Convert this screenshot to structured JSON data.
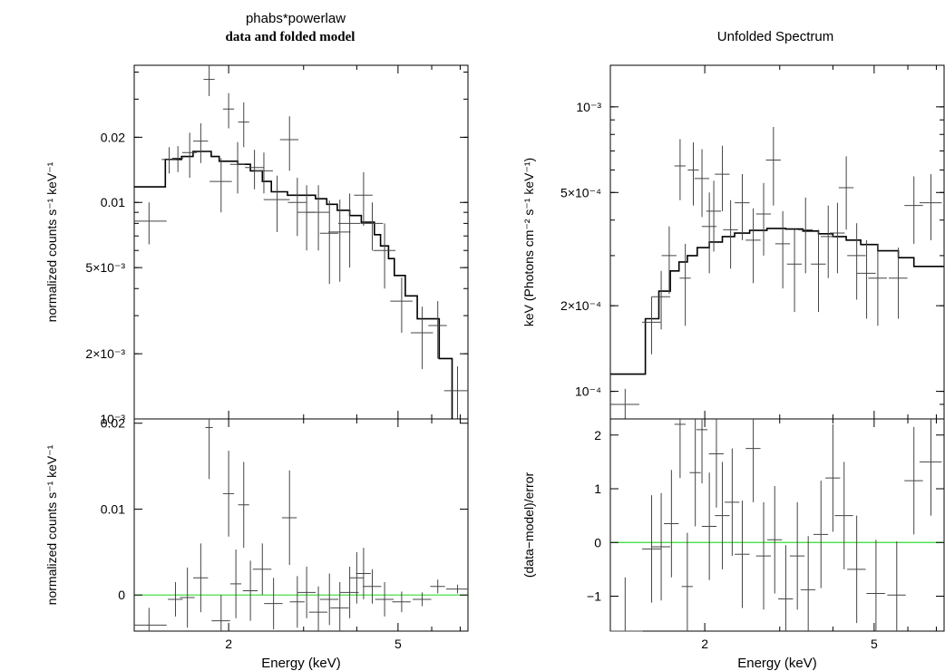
{
  "figure": {
    "left_title": "phabs*powerlaw",
    "left_subtitle": "data and folded model",
    "right_title": "Unfolded Spectrum"
  },
  "chart_data": [
    {
      "id": "left_top",
      "type": "scatter",
      "ylabel": "normalized counts s⁻¹ keV⁻¹",
      "xlabel": "",
      "xscale": "log",
      "yscale": "log",
      "xlim": [
        1.2,
        7.3
      ],
      "ylim": [
        0.001,
        0.043
      ],
      "yticks": [
        {
          "v": 0.02,
          "label": "0.02"
        },
        {
          "v": 0.01,
          "label": "0.01"
        },
        {
          "v": 0.005,
          "label": "5×10⁻³"
        },
        {
          "v": 0.002,
          "label": "2×10⁻³"
        },
        {
          "v": 0.001,
          "label": "10⁻³"
        }
      ],
      "data": [
        [
          1.3,
          0.0082,
          0.1,
          0.0018
        ],
        [
          1.45,
          0.0158,
          0.04,
          0.0022
        ],
        [
          1.52,
          0.016,
          0.03,
          0.0022
        ],
        [
          1.62,
          0.017,
          0.04,
          0.004
        ],
        [
          1.72,
          0.0192,
          0.04,
          0.004
        ],
        [
          1.8,
          0.037,
          0.03,
          0.006
        ],
        [
          1.92,
          0.0125,
          0.06,
          0.0035
        ],
        [
          2.0,
          0.027,
          0.03,
          0.005
        ],
        [
          2.1,
          0.015,
          0.04,
          0.004
        ],
        [
          2.17,
          0.0235,
          0.03,
          0.0055
        ],
        [
          2.3,
          0.0145,
          0.05,
          0.003
        ],
        [
          2.42,
          0.014,
          0.05,
          0.003
        ],
        [
          2.6,
          0.0103,
          0.07,
          0.003
        ],
        [
          2.78,
          0.0195,
          0.05,
          0.0055
        ],
        [
          2.9,
          0.01,
          0.05,
          0.003
        ],
        [
          3.05,
          0.009,
          0.05,
          0.003
        ],
        [
          3.25,
          0.009,
          0.06,
          0.003
        ],
        [
          3.45,
          0.0072,
          0.05,
          0.003
        ],
        [
          3.65,
          0.0073,
          0.06,
          0.003
        ],
        [
          3.85,
          0.008,
          0.06,
          0.003
        ],
        [
          4.15,
          0.0108,
          0.05,
          0.003
        ],
        [
          4.35,
          0.008,
          0.06,
          0.002
        ],
        [
          4.65,
          0.006,
          0.06,
          0.002
        ],
        [
          5.1,
          0.0035,
          0.06,
          0.001
        ],
        [
          5.7,
          0.0025,
          0.06,
          0.0008
        ],
        [
          6.2,
          0.0027,
          0.05,
          0.0008
        ],
        [
          6.9,
          0.00135,
          0.07,
          0.0004
        ]
      ],
      "model": [
        [
          1.2,
          0.0118
        ],
        [
          1.42,
          0.0118
        ],
        [
          1.42,
          0.0158
        ],
        [
          1.55,
          0.0158
        ],
        [
          1.55,
          0.0163
        ],
        [
          1.65,
          0.0163
        ],
        [
          1.65,
          0.0172
        ],
        [
          1.82,
          0.0172
        ],
        [
          1.82,
          0.0163
        ],
        [
          1.9,
          0.0163
        ],
        [
          1.9,
          0.0155
        ],
        [
          2.1,
          0.0155
        ],
        [
          2.1,
          0.015
        ],
        [
          2.25,
          0.015
        ],
        [
          2.25,
          0.014
        ],
        [
          2.4,
          0.014
        ],
        [
          2.4,
          0.0125
        ],
        [
          2.52,
          0.0125
        ],
        [
          2.52,
          0.0112
        ],
        [
          2.75,
          0.0112
        ],
        [
          2.75,
          0.0108
        ],
        [
          3.2,
          0.0108
        ],
        [
          3.2,
          0.0104
        ],
        [
          3.4,
          0.0104
        ],
        [
          3.4,
          0.0098
        ],
        [
          3.6,
          0.0098
        ],
        [
          3.6,
          0.0092
        ],
        [
          3.85,
          0.0092
        ],
        [
          3.85,
          0.0087
        ],
        [
          4.1,
          0.0087
        ],
        [
          4.1,
          0.0081
        ],
        [
          4.4,
          0.0081
        ],
        [
          4.4,
          0.0071
        ],
        [
          4.55,
          0.0071
        ],
        [
          4.55,
          0.0063
        ],
        [
          4.75,
          0.0063
        ],
        [
          4.75,
          0.0055
        ],
        [
          4.9,
          0.0055
        ],
        [
          4.9,
          0.0046
        ],
        [
          5.2,
          0.0046
        ],
        [
          5.2,
          0.0037
        ],
        [
          5.55,
          0.0037
        ],
        [
          5.55,
          0.0029
        ],
        [
          6.25,
          0.0029
        ],
        [
          6.25,
          0.0019
        ],
        [
          6.7,
          0.0019
        ],
        [
          6.7,
          0.001
        ]
      ]
    },
    {
      "id": "left_bottom",
      "type": "scatter",
      "ylabel": "normalized counts s⁻¹ keV⁻¹",
      "xlabel": "Energy (keV)",
      "xscale": "log",
      "yscale": "linear",
      "xlim": [
        1.2,
        7.3
      ],
      "ylim": [
        -0.0042,
        0.0205
      ],
      "zero_line_color": "#33dd33",
      "yticks": [
        {
          "v": 0.02,
          "label": "0.02"
        },
        {
          "v": 0.01,
          "label": "0.01"
        },
        {
          "v": 0,
          "label": "0"
        }
      ],
      "xticks": [
        {
          "v": 2,
          "label": "2"
        },
        {
          "v": 5,
          "label": "5"
        }
      ],
      "data": [
        [
          1.3,
          -0.0035,
          0.1,
          0.002
        ],
        [
          1.5,
          -0.0005,
          0.04,
          0.002
        ],
        [
          1.6,
          -0.0003,
          0.04,
          0.0035
        ],
        [
          1.72,
          0.002,
          0.04,
          0.004
        ],
        [
          1.8,
          0.0195,
          0.02,
          0.006
        ],
        [
          1.85,
          0.022,
          0.02,
          0.006
        ],
        [
          1.92,
          -0.003,
          0.05,
          0.003
        ],
        [
          2.0,
          0.0118,
          0.03,
          0.005
        ],
        [
          2.08,
          0.0013,
          0.03,
          0.004
        ],
        [
          2.17,
          0.0105,
          0.03,
          0.005
        ],
        [
          2.25,
          0.0005,
          0.04,
          0.0035
        ],
        [
          2.4,
          0.003,
          0.05,
          0.003
        ],
        [
          2.55,
          -0.001,
          0.05,
          0.003
        ],
        [
          2.78,
          0.009,
          0.04,
          0.0055
        ],
        [
          2.9,
          -0.0008,
          0.04,
          0.003
        ],
        [
          3.05,
          0.0003,
          0.05,
          0.003
        ],
        [
          3.25,
          -0.002,
          0.05,
          0.003
        ],
        [
          3.45,
          -0.0005,
          0.05,
          0.003
        ],
        [
          3.65,
          -0.0015,
          0.05,
          0.003
        ],
        [
          3.85,
          0.0003,
          0.05,
          0.003
        ],
        [
          4.0,
          0.002,
          0.04,
          0.003
        ],
        [
          4.15,
          0.0025,
          0.04,
          0.003
        ],
        [
          4.35,
          0.001,
          0.05,
          0.002
        ],
        [
          4.65,
          -0.0005,
          0.05,
          0.002
        ],
        [
          5.1,
          -0.0008,
          0.05,
          0.0012
        ],
        [
          5.7,
          -0.0005,
          0.05,
          0.0008
        ],
        [
          6.2,
          0.001,
          0.04,
          0.0008
        ],
        [
          6.9,
          0.0007,
          0.06,
          0.0005
        ]
      ]
    },
    {
      "id": "right_top",
      "type": "scatter",
      "ylabel": "keV (Photons cm⁻² s⁻¹ keV⁻¹)",
      "xlabel": "",
      "xscale": "log",
      "yscale": "log",
      "xlim": [
        1.2,
        7.3
      ],
      "ylim": [
        8e-05,
        0.0014
      ],
      "yticks": [
        {
          "v": 0.001,
          "label": "10⁻³"
        },
        {
          "v": 0.0005,
          "label": "5×10⁻⁴"
        },
        {
          "v": 0.0002,
          "label": "2×10⁻⁴"
        },
        {
          "v": 0.0001,
          "label": "10⁻⁴"
        }
      ],
      "data": [
        [
          1.3,
          9e-05,
          0.08,
          1.2e-05
        ],
        [
          1.5,
          0.000175,
          0.05,
          4e-05
        ],
        [
          1.58,
          0.000215,
          0.05,
          5e-05
        ],
        [
          1.65,
          0.0003,
          0.04,
          8e-05
        ],
        [
          1.75,
          0.00062,
          0.03,
          0.00015
        ],
        [
          1.8,
          0.00025,
          0.03,
          8e-05
        ],
        [
          1.88,
          0.0006,
          0.03,
          0.00015
        ],
        [
          1.97,
          0.00056,
          0.04,
          0.00015
        ],
        [
          2.05,
          0.00038,
          0.04,
          0.00012
        ],
        [
          2.1,
          0.00043,
          0.04,
          0.00012
        ],
        [
          2.2,
          0.00058,
          0.04,
          0.00015
        ],
        [
          2.3,
          0.00037,
          0.04,
          0.0001
        ],
        [
          2.45,
          0.00046,
          0.04,
          0.00012
        ],
        [
          2.6,
          0.00034,
          0.04,
          0.0001
        ],
        [
          2.75,
          0.00042,
          0.04,
          0.00012
        ],
        [
          2.9,
          0.00065,
          0.04,
          0.0002
        ],
        [
          3.05,
          0.00033,
          0.04,
          0.0001
        ],
        [
          3.25,
          0.00028,
          0.04,
          9e-05
        ],
        [
          3.45,
          0.00037,
          0.04,
          0.00011
        ],
        [
          3.7,
          0.00028,
          0.04,
          9e-05
        ],
        [
          3.9,
          0.00035,
          0.04,
          0.0001
        ],
        [
          4.1,
          0.00036,
          0.04,
          0.0001
        ],
        [
          4.3,
          0.00052,
          0.04,
          0.00015
        ],
        [
          4.55,
          0.0003,
          0.05,
          9e-05
        ],
        [
          4.8,
          0.00026,
          0.05,
          8e-05
        ],
        [
          5.1,
          0.00025,
          0.05,
          8e-05
        ],
        [
          5.7,
          0.00025,
          0.05,
          7e-05
        ],
        [
          6.2,
          0.00045,
          0.05,
          0.00012
        ],
        [
          6.8,
          0.00046,
          0.06,
          0.00012
        ]
      ],
      "model": [
        [
          1.2,
          0.000115
        ],
        [
          1.45,
          0.000115
        ],
        [
          1.45,
          0.00018
        ],
        [
          1.56,
          0.00018
        ],
        [
          1.56,
          0.000225
        ],
        [
          1.66,
          0.000225
        ],
        [
          1.66,
          0.000265
        ],
        [
          1.74,
          0.000265
        ],
        [
          1.74,
          0.000285
        ],
        [
          1.82,
          0.000285
        ],
        [
          1.82,
          0.0003
        ],
        [
          1.92,
          0.0003
        ],
        [
          1.92,
          0.00032
        ],
        [
          2.05,
          0.00032
        ],
        [
          2.05,
          0.000335
        ],
        [
          2.2,
          0.000335
        ],
        [
          2.2,
          0.00035
        ],
        [
          2.35,
          0.00035
        ],
        [
          2.35,
          0.00036
        ],
        [
          2.55,
          0.00036
        ],
        [
          2.55,
          0.000368
        ],
        [
          2.8,
          0.000368
        ],
        [
          2.8,
          0.000374
        ],
        [
          3.1,
          0.000374
        ],
        [
          3.1,
          0.000372
        ],
        [
          3.4,
          0.000372
        ],
        [
          3.4,
          0.000366
        ],
        [
          3.7,
          0.000366
        ],
        [
          3.7,
          0.000358
        ],
        [
          4.0,
          0.000358
        ],
        [
          4.0,
          0.00035
        ],
        [
          4.3,
          0.00035
        ],
        [
          4.3,
          0.00034
        ],
        [
          4.65,
          0.00034
        ],
        [
          4.65,
          0.000328
        ],
        [
          5.1,
          0.000328
        ],
        [
          5.1,
          0.000312
        ],
        [
          5.7,
          0.000312
        ],
        [
          5.7,
          0.000295
        ],
        [
          6.2,
          0.000295
        ],
        [
          6.2,
          0.000275
        ],
        [
          7.3,
          0.000275
        ]
      ]
    },
    {
      "id": "right_bottom",
      "type": "scatter",
      "ylabel": "(data−model)/error",
      "xlabel": "Energy (keV)",
      "xscale": "log",
      "yscale": "linear",
      "xlim": [
        1.2,
        7.3
      ],
      "ylim": [
        -1.65,
        2.3
      ],
      "zero_line_color": "#33dd33",
      "yticks": [
        {
          "v": 2,
          "label": "2"
        },
        {
          "v": 1,
          "label": "1"
        },
        {
          "v": 0,
          "label": "0"
        },
        {
          "v": -1,
          "label": "−1"
        }
      ],
      "xticks": [
        {
          "v": 2,
          "label": "2"
        },
        {
          "v": 5,
          "label": "5"
        }
      ],
      "data": [
        [
          1.3,
          -1.65,
          0.1,
          1.0
        ],
        [
          1.5,
          -0.12,
          0.05,
          1.0
        ],
        [
          1.58,
          -0.08,
          0.05,
          1.0
        ],
        [
          1.67,
          0.35,
          0.04,
          1.0
        ],
        [
          1.75,
          2.2,
          0.03,
          1.0
        ],
        [
          1.82,
          -0.82,
          0.03,
          1.0
        ],
        [
          1.9,
          1.3,
          0.03,
          1.0
        ],
        [
          1.97,
          2.1,
          0.03,
          1.0
        ],
        [
          2.05,
          0.3,
          0.04,
          1.0
        ],
        [
          2.13,
          1.65,
          0.04,
          1.0
        ],
        [
          2.2,
          0.5,
          0.04,
          1.0
        ],
        [
          2.32,
          0.75,
          0.04,
          1.0
        ],
        [
          2.45,
          -0.22,
          0.04,
          1.0
        ],
        [
          2.6,
          1.75,
          0.04,
          1.0
        ],
        [
          2.75,
          -0.25,
          0.04,
          1.0
        ],
        [
          2.92,
          0.05,
          0.04,
          1.0
        ],
        [
          3.1,
          -1.05,
          0.04,
          1.0
        ],
        [
          3.3,
          -0.25,
          0.04,
          1.0
        ],
        [
          3.5,
          -0.88,
          0.04,
          1.0
        ],
        [
          3.75,
          0.15,
          0.04,
          1.0
        ],
        [
          4.0,
          1.2,
          0.04,
          1.0
        ],
        [
          4.25,
          0.5,
          0.05,
          1.0
        ],
        [
          4.55,
          -0.5,
          0.05,
          1.0
        ],
        [
          5.05,
          -0.95,
          0.05,
          1.0
        ],
        [
          5.65,
          -0.98,
          0.05,
          1.0
        ],
        [
          6.2,
          1.15,
          0.05,
          1.0
        ],
        [
          6.8,
          1.5,
          0.06,
          1.0
        ]
      ]
    }
  ]
}
